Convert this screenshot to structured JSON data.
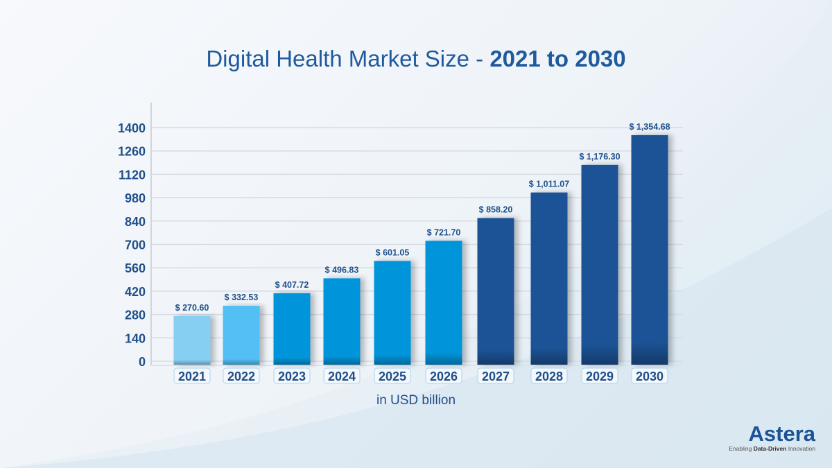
{
  "title": {
    "main": "Digital Health Market Size - ",
    "bold": "2021 to 2030"
  },
  "unit_label": "in USD billion",
  "logo": {
    "word": "Astera",
    "tagline_pre": "Enabling ",
    "tagline_bold": "Data-Driven",
    "tagline_post": " Innovation"
  },
  "chart_data": {
    "type": "bar",
    "title": "Digital Health Market Size - 2021 to 2030",
    "xlabel": "in USD billion",
    "ylabel": "",
    "categories": [
      "2021",
      "2022",
      "2023",
      "2024",
      "2025",
      "2026",
      "2027",
      "2028",
      "2029",
      "2030"
    ],
    "values": [
      270.6,
      332.53,
      407.72,
      496.83,
      601.05,
      721.7,
      858.2,
      1011.07,
      1176.3,
      1354.68
    ],
    "data_labels": [
      "$ 270.60",
      "$ 332.53",
      "$ 407.72",
      "$ 496.83",
      "$ 601.05",
      "$ 721.70",
      "$ 858.20",
      "$ 1,011.07",
      "$ 1,176.30",
      "$ 1,354.68"
    ],
    "colors": [
      "#87cef3",
      "#52c0f5",
      "#0095da",
      "#0095da",
      "#0095da",
      "#0095da",
      "#1c5296",
      "#1c5296",
      "#1c5296",
      "#1c5296"
    ],
    "yticks": [
      0,
      140,
      280,
      420,
      560,
      700,
      840,
      980,
      1120,
      1260,
      1400
    ],
    "ylim": [
      0,
      1400
    ],
    "grid": true,
    "legend": "none"
  }
}
